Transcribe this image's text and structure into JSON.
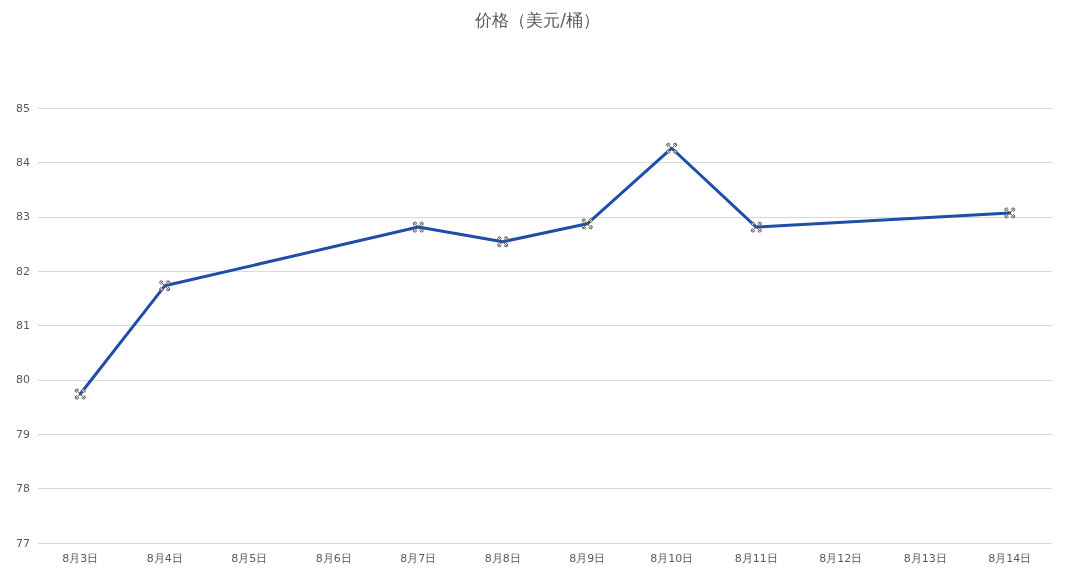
{
  "chart_data": {
    "type": "line",
    "title": "价格（美元/桶）",
    "categories": [
      "8月3日",
      "8月4日",
      "8月5日",
      "8月6日",
      "8月7日",
      "8月8日",
      "8月9日",
      "8月10日",
      "8月11日",
      "8月12日",
      "8月13日",
      "8月14日"
    ],
    "series": [
      {
        "color": "#1f4ea8",
        "values": [
          79.74,
          81.73,
          null,
          null,
          82.81,
          82.54,
          82.87,
          84.26,
          82.81,
          null,
          null,
          83.07
        ]
      }
    ],
    "ylim": [
      77,
      85
    ],
    "yticks": [
      77,
      78,
      79,
      80,
      81,
      82,
      83,
      84,
      85
    ],
    "grid": "y",
    "marker": "cross",
    "line_style": "solid"
  }
}
